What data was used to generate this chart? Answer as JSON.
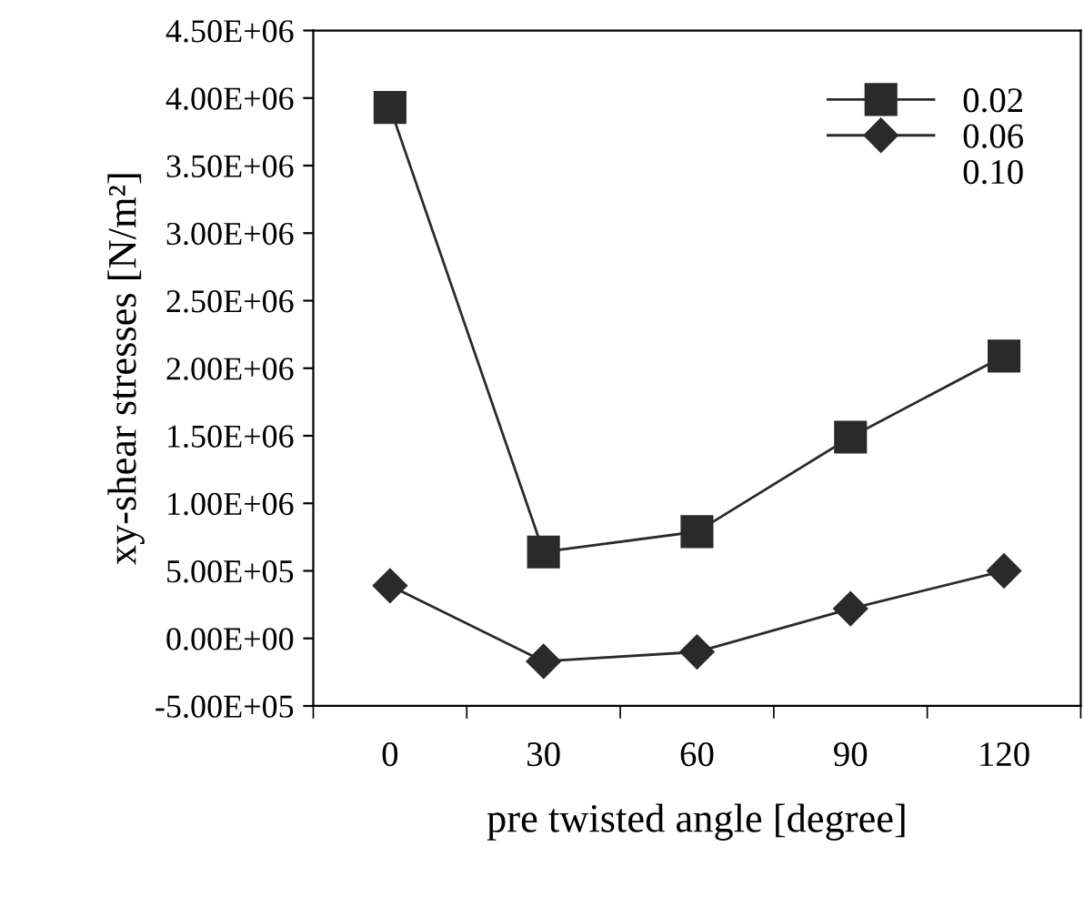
{
  "chart_data": {
    "type": "line",
    "xlabel": "pre twisted angle [degree]",
    "ylabel": "xy-shear stresses [N/m²]",
    "categories": [
      "0",
      "30",
      "60",
      "90",
      "120"
    ],
    "ylim": [
      -500000,
      4500000
    ],
    "yticks": [
      {
        "value": -500000,
        "label": "-5.00E+05"
      },
      {
        "value": 0,
        "label": "0.00E+00"
      },
      {
        "value": 500000,
        "label": "5.00E+05"
      },
      {
        "value": 1000000,
        "label": "1.00E+06"
      },
      {
        "value": 1500000,
        "label": "1.50E+06"
      },
      {
        "value": 2000000,
        "label": "2.00E+06"
      },
      {
        "value": 2500000,
        "label": "2.50E+06"
      },
      {
        "value": 3000000,
        "label": "3.00E+06"
      },
      {
        "value": 3500000,
        "label": "3.50E+06"
      },
      {
        "value": 4000000,
        "label": "4.00E+06"
      },
      {
        "value": 4500000,
        "label": "4.50E+06"
      }
    ],
    "series": [
      {
        "name": "0.02",
        "color": "#2a2a2a",
        "marker": "square",
        "values": [
          3930000,
          640000,
          790000,
          1490000,
          2090000
        ]
      },
      {
        "name": "0.06",
        "color": "#2a2a2a",
        "marker": "diamond",
        "values": [
          390000,
          -170000,
          -100000,
          220000,
          500000
        ]
      },
      {
        "name": "0.10",
        "marker": "none",
        "values": [
          null,
          null,
          null,
          null,
          null
        ]
      }
    ],
    "legend": "top right",
    "grid": false
  }
}
